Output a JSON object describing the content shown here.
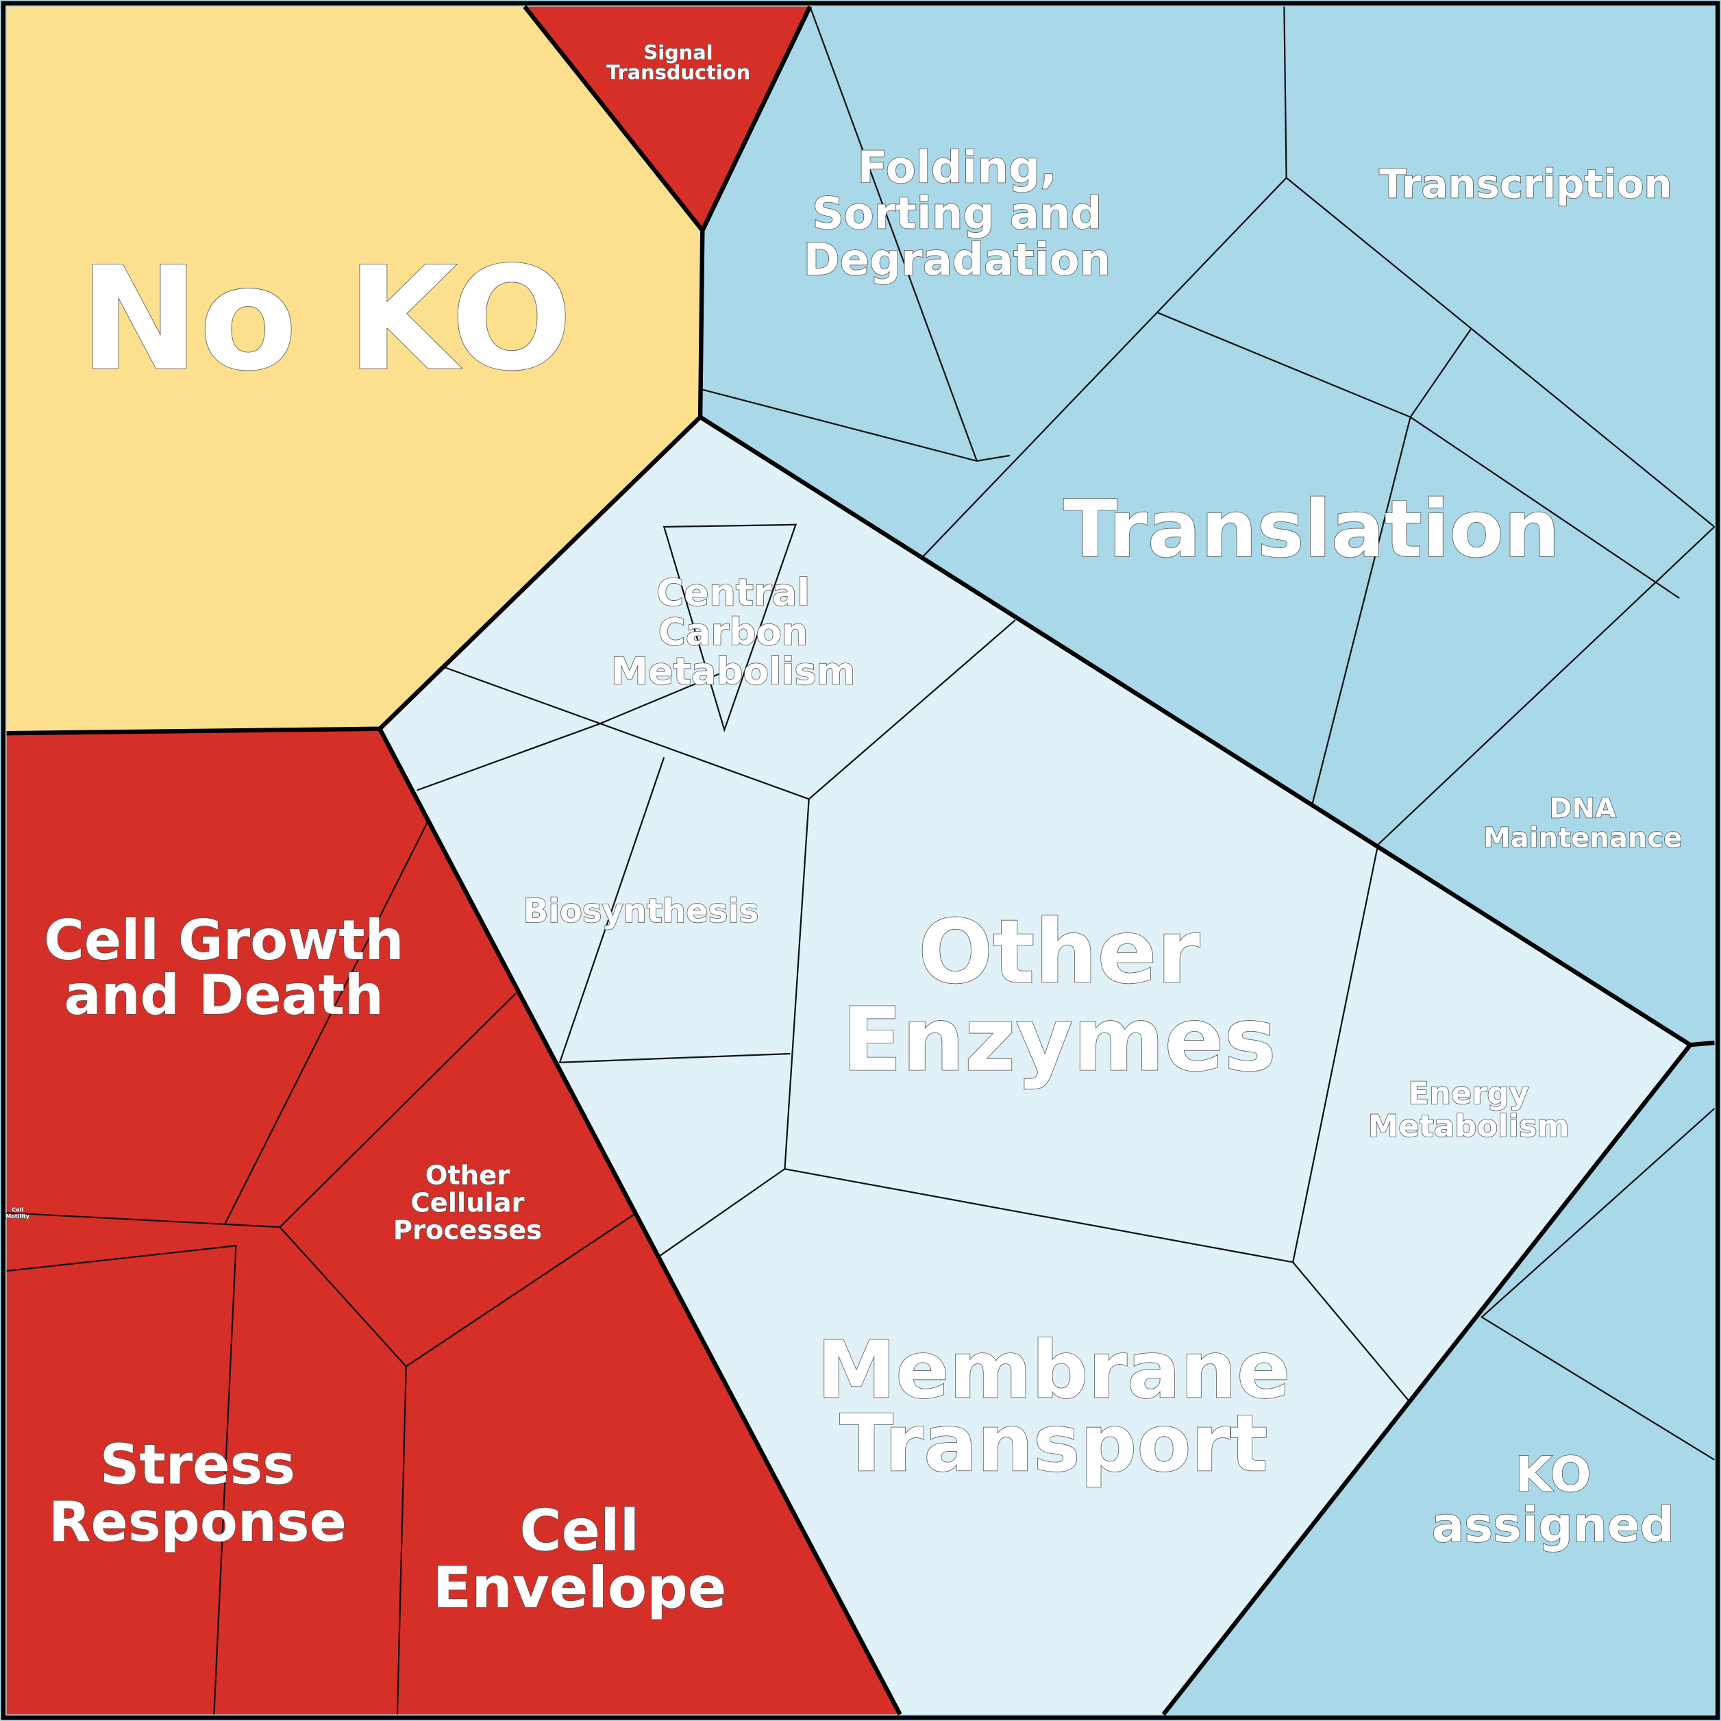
{
  "regions": [
    {
      "lines": [
        "No KO"
      ]
    },
    {
      "lines": [
        "Signal",
        "Transduction"
      ]
    },
    {
      "lines": [
        "Folding,",
        "Sorting and",
        "Degradation"
      ]
    },
    {
      "lines": [
        "Transcription"
      ]
    },
    {
      "lines": [
        "Translation"
      ]
    },
    {
      "lines": [
        "DNA",
        "Maintenance"
      ]
    },
    {
      "lines": [
        "KO",
        "assigned"
      ]
    },
    {
      "lines": [
        "Central",
        "Carbon",
        "Metabolism"
      ]
    },
    {
      "lines": [
        "Biosynthesis"
      ]
    },
    {
      "lines": [
        "Other",
        "Enzymes"
      ]
    },
    {
      "lines": [
        "Energy",
        "Metabolism"
      ]
    },
    {
      "lines": [
        "Membrane",
        "Transport"
      ]
    },
    {
      "lines": [
        "Cell Growth",
        "and Death"
      ]
    },
    {
      "lines": [
        "Other",
        "Cellular",
        "Processes"
      ]
    },
    {
      "lines": [
        "Stress",
        "Response"
      ]
    },
    {
      "lines": [
        "Cell",
        "Envelope"
      ]
    },
    {
      "lines": [
        "Cell",
        "Motility"
      ]
    }
  ]
}
